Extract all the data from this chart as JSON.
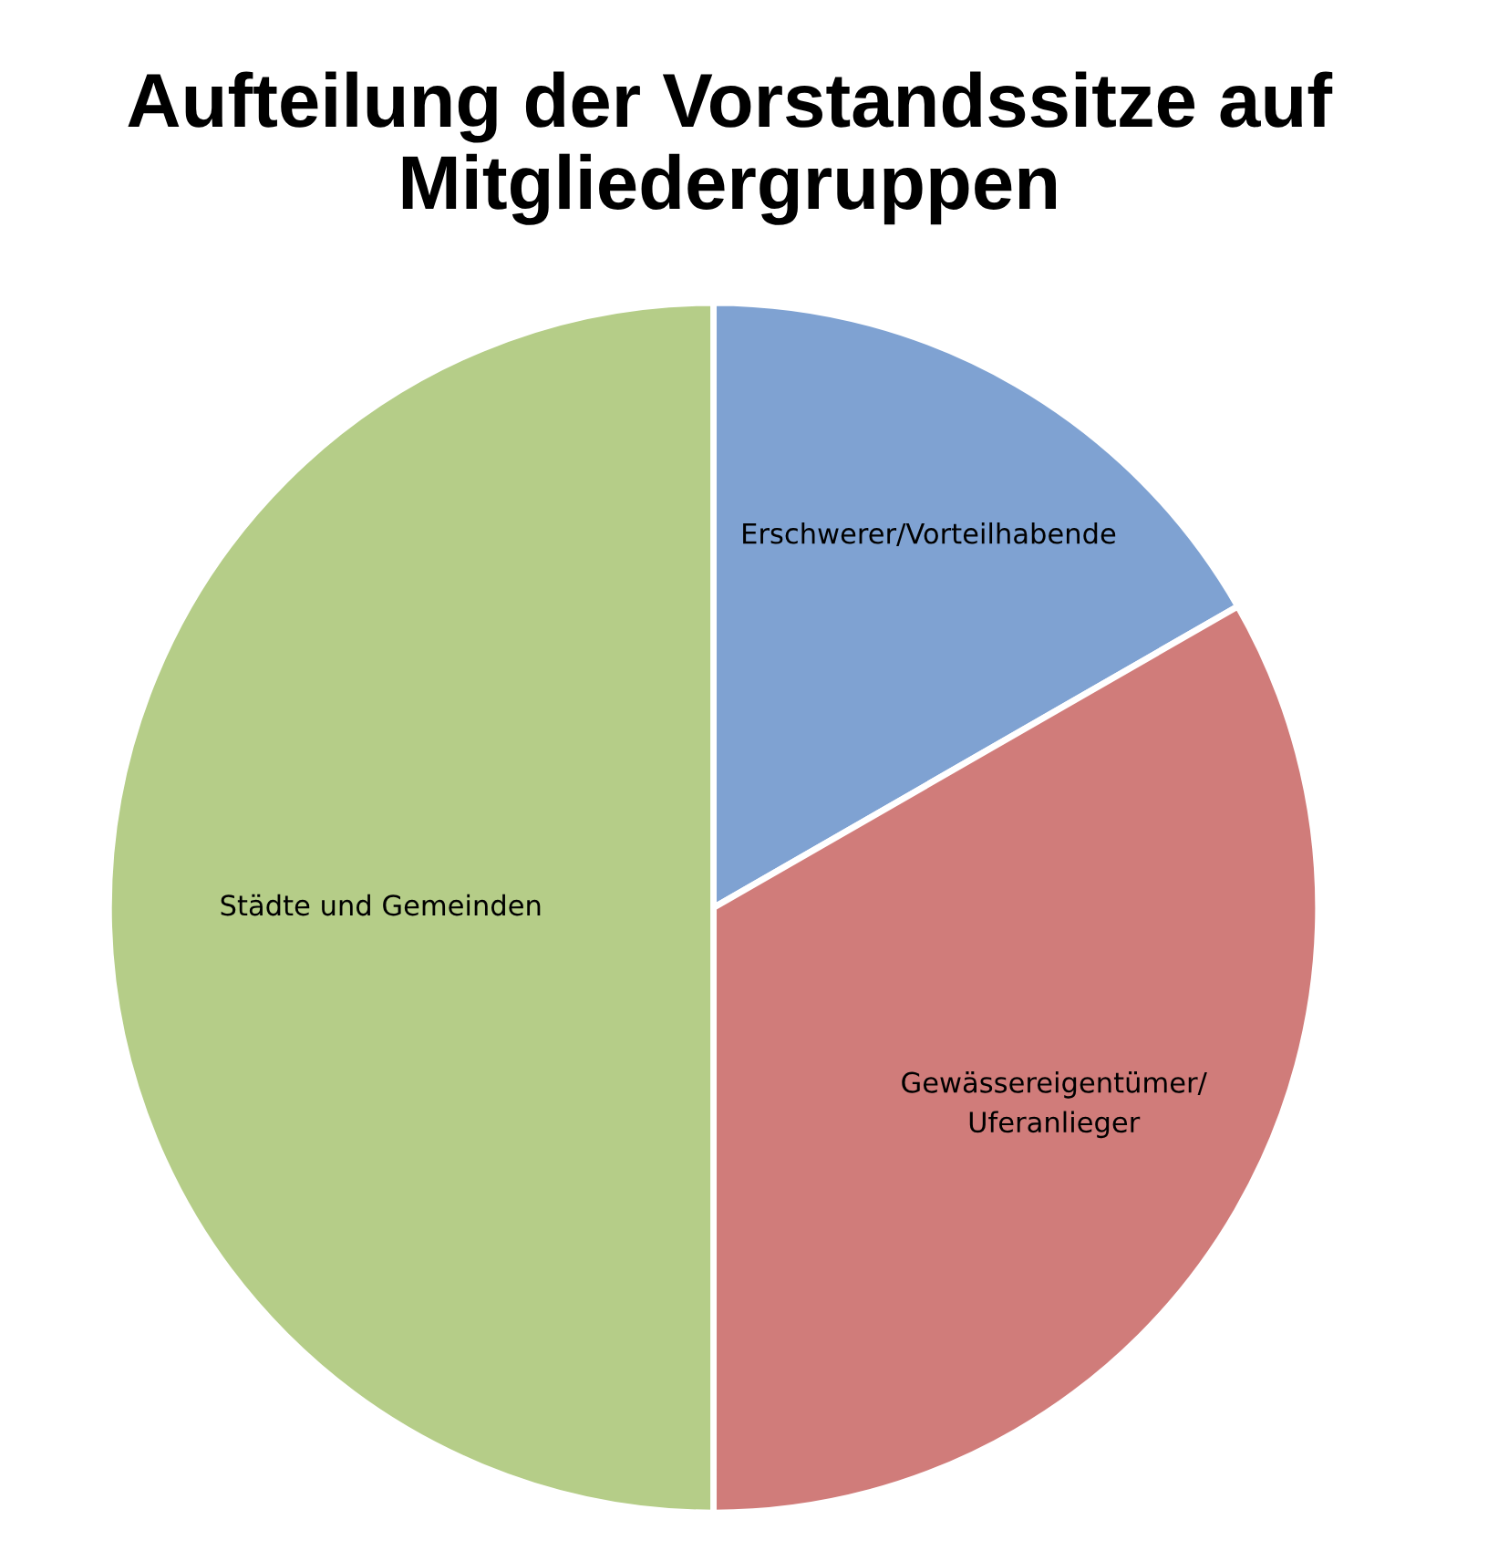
{
  "chart_data": {
    "type": "pie",
    "title": "Aufteilung der Vorstandssitze auf\nMitgliedergruppen",
    "categories": [
      "Erschwerer/Vorteilhabende",
      "Gewässereigentümer/\nUferanlieger",
      "Städte und Gemeinden"
    ],
    "values": [
      16.7,
      33.3,
      50.0
    ],
    "colors": [
      "#7fa2d2",
      "#d07c7a",
      "#b5cd88"
    ],
    "legend": false
  }
}
